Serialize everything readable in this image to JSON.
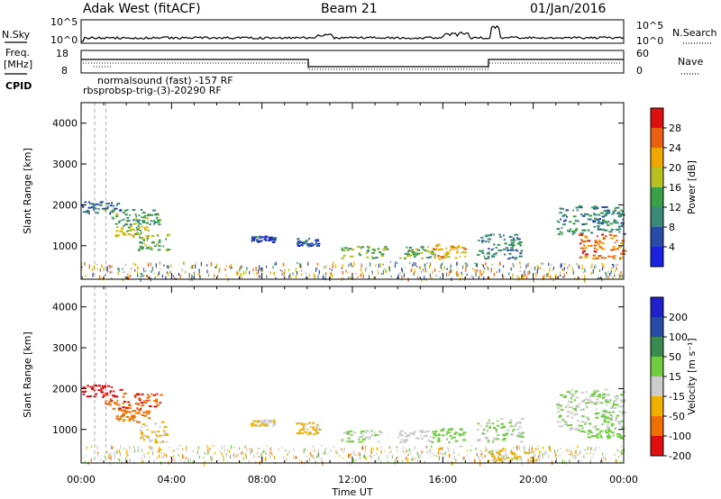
{
  "header": {
    "station": "Adak West (fitACF)",
    "beam": "Beam 21",
    "date": "01/Jan/2016"
  },
  "strips": {
    "nsky_label": "N.Sky",
    "nsearch_label": "N.Search",
    "noise_ticks": [
      "10^5",
      "10^0"
    ],
    "freq_label": "Freq.",
    "freq_unit": "[MHz]",
    "freq_ticks": [
      "18",
      "8"
    ],
    "nave_label": "Nave",
    "nave_ticks": [
      "60",
      "0"
    ],
    "cpid_label": "CPID",
    "cpid_text_1": "normalsound (fast) -157 RF",
    "cpid_text_2": "rbsprobsp-trig-(3)-20290 RF"
  },
  "chart_data": [
    {
      "type": "heatmap",
      "panel": "power",
      "ylabel": "Slant Range [km]",
      "xlabel": "",
      "x_ticks": [
        "00:00",
        "04:00",
        "08:00",
        "12:00",
        "16:00",
        "20:00",
        "00:00"
      ],
      "y_ticks": [
        "1000",
        "2000",
        "3000",
        "4000"
      ],
      "xlim_hours": [
        0,
        24
      ],
      "ylim_km": [
        180,
        4500
      ],
      "colorbar_label": "Power [dB]",
      "colorbar_ticks": [
        "4",
        "8",
        "12",
        "16",
        "20",
        "24",
        "28"
      ],
      "colorbar_range": [
        0,
        30
      ],
      "colors": [
        "#1a22dd",
        "#2a4aa8",
        "#3a8a78",
        "#3aa048",
        "#b8c020",
        "#f0a800",
        "#e86010",
        "#dd1010"
      ],
      "regions": [
        {
          "t": [
            0.0,
            1.7
          ],
          "r": [
            1800,
            2100
          ],
          "v": 7
        },
        {
          "t": [
            1.0,
            3.5
          ],
          "r": [
            1500,
            1900
          ],
          "v": 12
        },
        {
          "t": [
            1.5,
            3.0
          ],
          "r": [
            1200,
            1500
          ],
          "v": 17
        },
        {
          "t": [
            2.5,
            3.8
          ],
          "r": [
            900,
            1300
          ],
          "v": 14
        },
        {
          "t": [
            7.5,
            8.5
          ],
          "r": [
            1100,
            1250
          ],
          "v": 5
        },
        {
          "t": [
            9.5,
            10.5
          ],
          "r": [
            1000,
            1200
          ],
          "v": 6
        },
        {
          "t": [
            11.5,
            13.5
          ],
          "r": [
            700,
            1000
          ],
          "v": 14
        },
        {
          "t": [
            14.0,
            15.5
          ],
          "r": [
            700,
            1000
          ],
          "v": 13
        },
        {
          "t": [
            15.5,
            17.0
          ],
          "r": [
            700,
            1050
          ],
          "v": 20
        },
        {
          "t": [
            17.5,
            19.5
          ],
          "r": [
            700,
            1300
          ],
          "v": 10
        },
        {
          "t": [
            21.0,
            24.0
          ],
          "r": [
            1300,
            2000
          ],
          "v": 10
        },
        {
          "t": [
            22.0,
            24.0
          ],
          "r": [
            700,
            1300
          ],
          "v": 24
        }
      ]
    },
    {
      "type": "heatmap",
      "panel": "velocity",
      "ylabel": "Slant Range [km]",
      "xlabel": "Time UT",
      "x_ticks": [
        "00:00",
        "04:00",
        "08:00",
        "12:00",
        "16:00",
        "20:00",
        "00:00"
      ],
      "y_ticks": [
        "1000",
        "2000",
        "3000",
        "4000"
      ],
      "xlim_hours": [
        0,
        24
      ],
      "ylim_km": [
        180,
        4500
      ],
      "colorbar_label": "Velocity [m s⁻¹]",
      "colorbar_ticks": [
        "200",
        "100",
        "50",
        "15",
        "-15",
        "-50",
        "-100",
        "-200"
      ],
      "colorbar_range": [
        -250,
        250
      ],
      "colors": [
        "#2020cc",
        "#2a4aa8",
        "#3a8a50",
        "#70cc40",
        "#cccccc",
        "#f0b000",
        "#f07000",
        "#e01010"
      ],
      "regions": [
        {
          "t": [
            0.0,
            1.7
          ],
          "r": [
            1800,
            2100
          ],
          "v": -220
        },
        {
          "t": [
            1.0,
            3.5
          ],
          "r": [
            1500,
            1900
          ],
          "v": -180
        },
        {
          "t": [
            1.5,
            3.0
          ],
          "r": [
            1200,
            1500
          ],
          "v": -150
        },
        {
          "t": [
            2.5,
            3.8
          ],
          "r": [
            700,
            1200
          ],
          "v": -70
        },
        {
          "t": [
            7.5,
            8.5
          ],
          "r": [
            1100,
            1250
          ],
          "v": -60
        },
        {
          "t": [
            9.5,
            10.5
          ],
          "r": [
            900,
            1200
          ],
          "v": -80
        },
        {
          "t": [
            11.5,
            13.5
          ],
          "r": [
            700,
            1000
          ],
          "v": 0
        },
        {
          "t": [
            14.0,
            15.5
          ],
          "r": [
            700,
            1000
          ],
          "v": -30
        },
        {
          "t": [
            15.5,
            17.0
          ],
          "r": [
            700,
            1050
          ],
          "v": 30
        },
        {
          "t": [
            17.5,
            19.5
          ],
          "r": [
            700,
            1300
          ],
          "v": 0
        },
        {
          "t": [
            18.0,
            20.0
          ],
          "r": [
            250,
            500
          ],
          "v": -70
        },
        {
          "t": [
            21.0,
            24.0
          ],
          "r": [
            1000,
            2000
          ],
          "v": 0
        },
        {
          "t": [
            22.0,
            24.0
          ],
          "r": [
            800,
            1000
          ],
          "v": 30
        }
      ]
    }
  ]
}
